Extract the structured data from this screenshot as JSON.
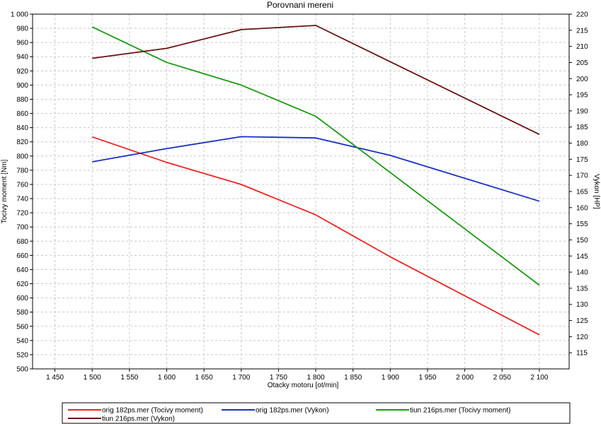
{
  "chart_data": {
    "type": "line",
    "title": "Porovnani mereni",
    "xlabel": "Otacky motoru [ot/min]",
    "ylabel_left": "Tocivy moment [Nm]",
    "ylabel_right": "Vykon [HP]",
    "xlim": [
      1420,
      2140
    ],
    "ylim_left": [
      500,
      1000
    ],
    "ylim_right": [
      110,
      220
    ],
    "x_ticks": [
      1450,
      1500,
      1550,
      1600,
      1650,
      1700,
      1750,
      1800,
      1850,
      1900,
      1950,
      2000,
      2050,
      2100
    ],
    "x_tick_labels": [
      "1 450",
      "1 500",
      "1 550",
      "1 600",
      "1 650",
      "1 700",
      "1 750",
      "1 800",
      "1 850",
      "1 900",
      "1 950",
      "2 000",
      "2 050",
      "2 100"
    ],
    "y_left_ticks": [
      500,
      520,
      540,
      560,
      580,
      600,
      620,
      640,
      660,
      680,
      700,
      720,
      740,
      760,
      780,
      800,
      820,
      840,
      860,
      880,
      900,
      920,
      940,
      960,
      980,
      1000
    ],
    "y_left_tick_labels": [
      "500",
      "520",
      "540",
      "560",
      "580",
      "600",
      "620",
      "640",
      "660",
      "680",
      "700",
      "720",
      "740",
      "760",
      "780",
      "800",
      "820",
      "840",
      "860",
      "880",
      "900",
      "920",
      "940",
      "960",
      "980",
      "1 000"
    ],
    "y_right_ticks": [
      115,
      120,
      125,
      130,
      135,
      140,
      145,
      150,
      155,
      160,
      165,
      170,
      175,
      180,
      185,
      190,
      195,
      200,
      205,
      210,
      215,
      220
    ],
    "y_right_tick_labels": [
      "115",
      "120",
      "125",
      "130",
      "135",
      "140",
      "145",
      "150",
      "155",
      "160",
      "165",
      "170",
      "175",
      "180",
      "185",
      "190",
      "195",
      "200",
      "205",
      "210",
      "215",
      "220"
    ],
    "grid": true,
    "legend_position": "bottom",
    "series": [
      {
        "name": "orig 182ps.mer  (Tocivy moment)",
        "axis": "left",
        "color": "#ee2222",
        "x": [
          1500,
          1600,
          1700,
          1800,
          1900,
          2100
        ],
        "y": [
          827,
          791,
          760,
          717,
          658,
          548
        ]
      },
      {
        "name": "orig 182ps.mer  (Vykon)",
        "axis": "right",
        "color": "#1a2fc4",
        "x": [
          1500,
          1600,
          1700,
          1800,
          1900,
          2100
        ],
        "y": [
          174.2,
          178.3,
          182.0,
          181.6,
          176.2,
          162.0
        ]
      },
      {
        "name": "tiun 216ps.mer  (Tocivy moment)",
        "axis": "left",
        "color": "#1a9a12",
        "x": [
          1500,
          1600,
          1700,
          1800,
          2100
        ],
        "y": [
          982,
          932,
          900,
          856,
          618
        ]
      },
      {
        "name": "tiun 216ps.mer  (Vykon)",
        "axis": "right",
        "color": "#6b1010",
        "x": [
          1500,
          1600,
          1700,
          1800,
          2100
        ],
        "y": [
          206.3,
          209.4,
          215.2,
          216.5,
          182.7
        ]
      }
    ]
  }
}
